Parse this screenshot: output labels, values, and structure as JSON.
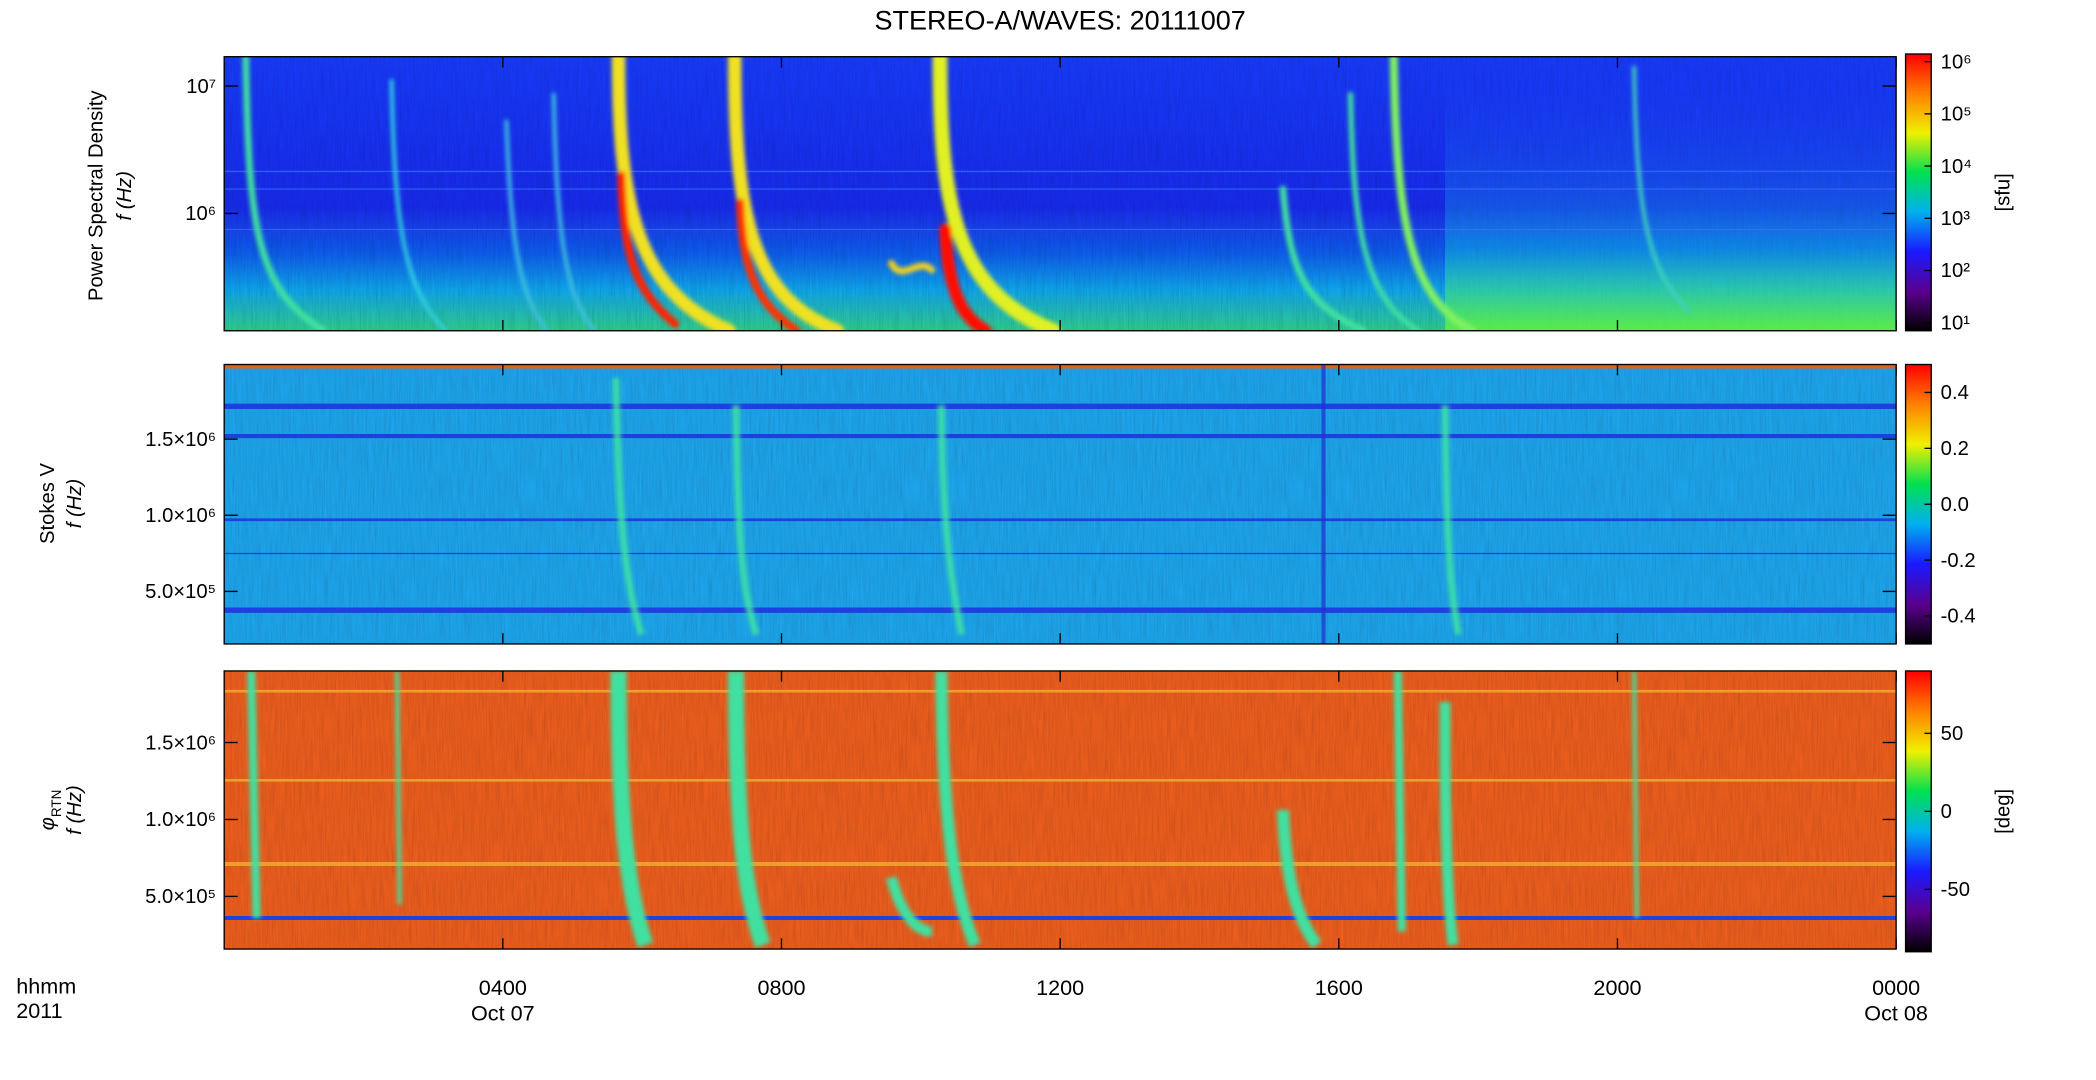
{
  "chart_data": [
    {
      "type": "heatmap",
      "title": "STEREO-A/WAVES: 20111007",
      "ylabel": "Power Spectral Density",
      "ylabel2": "f (Hz)",
      "yscale": "log",
      "ylim": [
        120000,
        17000000
      ],
      "yticks": [
        {
          "value": 1000000,
          "label": "10⁶"
        },
        {
          "value": 10000000,
          "label": "10⁷"
        }
      ],
      "colorbar": {
        "scale": "log",
        "lim": [
          7,
          1400000
        ],
        "label": "[sfu]",
        "ticks": [
          {
            "value": 10,
            "label": "10¹"
          },
          {
            "value": 100,
            "label": "10²"
          },
          {
            "value": 1000,
            "label": "10³"
          },
          {
            "value": 10000,
            "label": "10⁴"
          },
          {
            "value": 100000,
            "label": "10⁵"
          },
          {
            "value": 1000000,
            "label": "10⁶"
          }
        ],
        "colors": [
          "#000000",
          "#5a0090",
          "#1a1aff",
          "#00b0f0",
          "#00e050",
          "#f0f000",
          "#ff8000",
          "#ff0000"
        ]
      }
    },
    {
      "type": "heatmap",
      "ylabel": "Stokes V",
      "ylabel2": "f (Hz)",
      "yscale": "linear",
      "ylim": [
        155000,
        1990000
      ],
      "yticks": [
        {
          "value": 500000,
          "label": "5.0×10⁵"
        },
        {
          "value": 1000000,
          "label": "1.0×10⁶"
        },
        {
          "value": 1500000,
          "label": "1.5×10⁶"
        }
      ],
      "colorbar": {
        "scale": "linear",
        "lim": [
          -0.5,
          0.5
        ],
        "ticks": [
          -0.4,
          -0.2,
          {
            "value": 0,
            "label": "0.0"
          },
          0.2,
          0.4
        ],
        "colors": [
          "#000000",
          "#5a0090",
          "#1a1aff",
          "#00b0f0",
          "#00e050",
          "#f0f000",
          "#ff8000",
          "#ff0000"
        ]
      }
    },
    {
      "type": "heatmap",
      "ylabel": "φ",
      "ylabel_sub": "RTN",
      "ylabel2": "f (Hz)",
      "yscale": "linear",
      "ylim": [
        158000,
        1965000
      ],
      "yticks": [
        {
          "value": 500000,
          "label": "5.0×10⁵"
        },
        {
          "value": 1000000,
          "label": "1.0×10⁶"
        },
        {
          "value": 1500000,
          "label": "1.5×10⁶"
        }
      ],
      "colorbar": {
        "scale": "linear",
        "lim": [
          -90,
          90
        ],
        "label": "[deg]",
        "ticks": [
          -50,
          0,
          50
        ],
        "colors": [
          "#000000",
          "#5a0090",
          "#1a1aff",
          "#00b0f0",
          "#00e050",
          "#f0f000",
          "#ff8000",
          "#ff0000"
        ]
      },
      "xlabel": "hhmm",
      "year": "2011",
      "xlim": [
        0,
        24
      ],
      "xticks": [
        {
          "value": 4,
          "label": "0400"
        },
        {
          "value": 8,
          "label": "0800"
        },
        {
          "value": 12,
          "label": "1200"
        },
        {
          "value": 16,
          "label": "1600"
        },
        {
          "value": 20,
          "label": "2000"
        },
        {
          "value": 24,
          "label": "0000"
        }
      ],
      "date_labels": [
        {
          "value": 4,
          "label": "Oct 07"
        },
        {
          "value": 24,
          "label": "Oct 08"
        }
      ]
    }
  ]
}
